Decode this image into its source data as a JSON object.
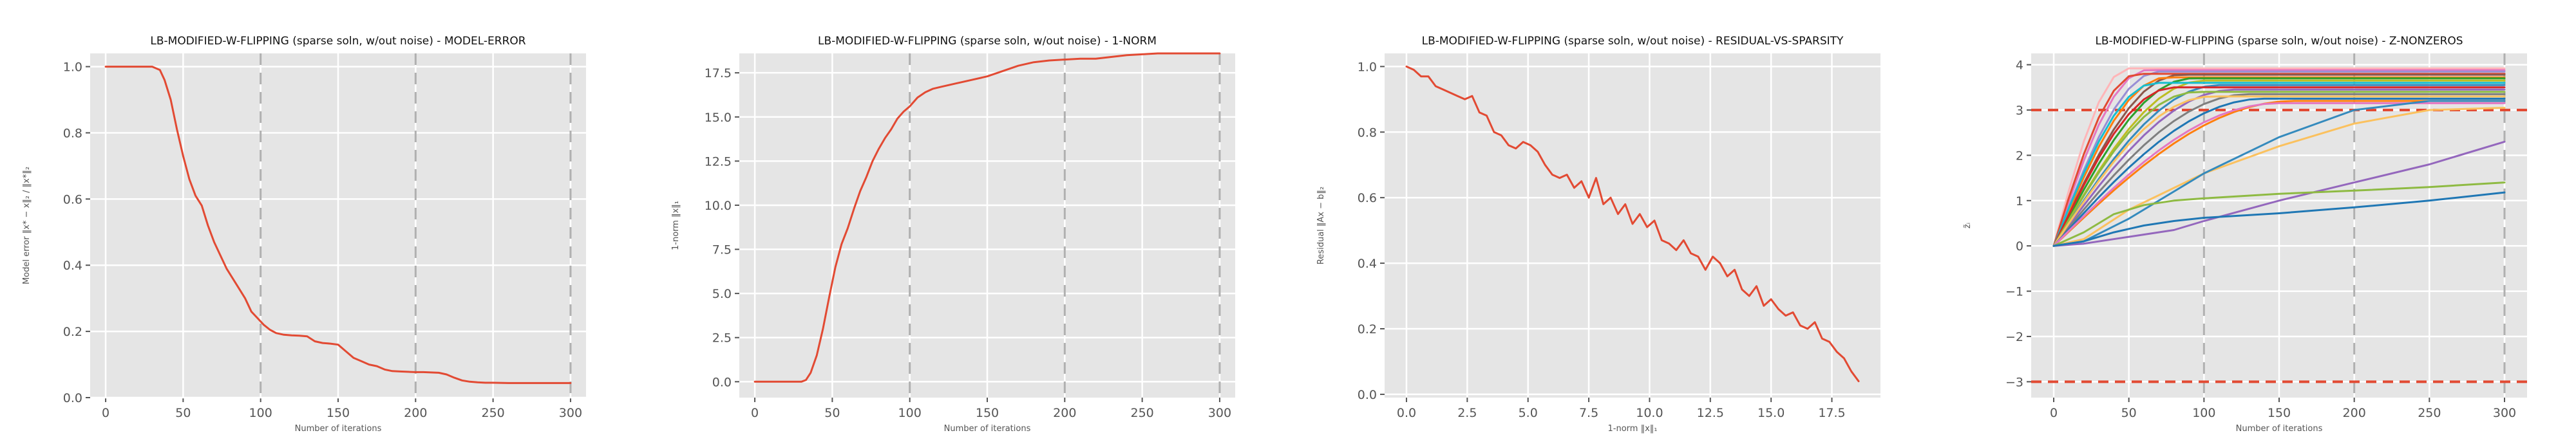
{
  "figure": {
    "colors": {
      "primary": "#e24a33",
      "palette": [
        "#1f77b4",
        "#ff7f0e",
        "#2ca02c",
        "#d62728",
        "#9467bd",
        "#8c564b",
        "#e377c2",
        "#7f7f7f",
        "#bcbd22",
        "#17becf",
        "#e24a33",
        "#348abd",
        "#988ed5",
        "#fbc15e",
        "#8eba42",
        "#ffb5b8"
      ],
      "background": "#e5e5e5",
      "grid": "#ffffff",
      "iteration_marker": "#b0b0b0"
    }
  },
  "chart_data": [
    {
      "type": "line",
      "title": "LB-MODIFIED-W-FLIPPING (sparse soln, w/out noise) - MODEL-ERROR",
      "xlabel": "Number of iterations",
      "ylabel": "Model error ‖x* − x‖₂ / ‖x*‖₂",
      "xlim": [
        -10,
        310
      ],
      "ylim": [
        0,
        1.04
      ],
      "xticks": [
        "0",
        "50",
        "100",
        "150",
        "200",
        "250",
        "300"
      ],
      "yticks": [
        "0.0",
        "0.2",
        "0.4",
        "0.6",
        "0.8",
        "1.0"
      ],
      "grid": true,
      "iteration_markers": [
        100,
        200,
        300
      ],
      "series": [
        {
          "color": "#e24a33",
          "x": [
            0,
            10,
            20,
            30,
            35,
            38,
            42,
            46,
            50,
            54,
            58,
            62,
            66,
            70,
            74,
            78,
            82,
            86,
            90,
            94,
            98,
            102,
            106,
            110,
            115,
            120,
            125,
            130,
            135,
            140,
            145,
            150,
            155,
            160,
            165,
            170,
            175,
            180,
            185,
            190,
            195,
            200,
            205,
            210,
            215,
            220,
            225,
            230,
            235,
            240,
            245,
            250,
            260,
            270,
            280,
            290,
            300
          ],
          "y": [
            1.0,
            1.0,
            1.0,
            1.0,
            0.99,
            0.96,
            0.9,
            0.81,
            0.73,
            0.66,
            0.61,
            0.58,
            0.52,
            0.47,
            0.43,
            0.39,
            0.36,
            0.33,
            0.3,
            0.26,
            0.24,
            0.22,
            0.205,
            0.195,
            0.19,
            0.188,
            0.187,
            0.185,
            0.17,
            0.165,
            0.163,
            0.16,
            0.14,
            0.12,
            0.11,
            0.1,
            0.095,
            0.085,
            0.08,
            0.079,
            0.078,
            0.077,
            0.077,
            0.076,
            0.075,
            0.07,
            0.06,
            0.052,
            0.048,
            0.046,
            0.045,
            0.045,
            0.044,
            0.044,
            0.044,
            0.044,
            0.044
          ]
        }
      ]
    },
    {
      "type": "line",
      "title": "LB-MODIFIED-W-FLIPPING (sparse soln, w/out noise) - 1-NORM",
      "xlabel": "Number of iterations",
      "ylabel": "1-norm ‖x‖₁",
      "xlim": [
        -10,
        310
      ],
      "ylim": [
        -0.9,
        18.6
      ],
      "xticks": [
        "0",
        "50",
        "100",
        "150",
        "200",
        "250",
        "300"
      ],
      "yticks": [
        "0.0",
        "2.5",
        "5.0",
        "7.5",
        "10.0",
        "12.5",
        "15.0",
        "17.5"
      ],
      "grid": true,
      "iteration_markers": [
        100,
        200,
        300
      ],
      "series": [
        {
          "color": "#e24a33",
          "x": [
            0,
            10,
            20,
            30,
            33,
            36,
            40,
            44,
            48,
            52,
            56,
            60,
            64,
            68,
            72,
            76,
            80,
            84,
            88,
            92,
            96,
            100,
            105,
            110,
            115,
            120,
            130,
            140,
            150,
            160,
            170,
            180,
            190,
            200,
            210,
            220,
            230,
            240,
            250,
            260,
            270,
            280,
            290,
            300
          ],
          "y": [
            0,
            0,
            0,
            0,
            0.1,
            0.5,
            1.5,
            3.0,
            4.8,
            6.5,
            7.8,
            8.7,
            9.8,
            10.8,
            11.6,
            12.5,
            13.2,
            13.8,
            14.3,
            14.9,
            15.3,
            15.6,
            16.1,
            16.4,
            16.6,
            16.7,
            16.9,
            17.1,
            17.3,
            17.6,
            17.9,
            18.1,
            18.2,
            18.25,
            18.3,
            18.3,
            18.4,
            18.5,
            18.55,
            18.6,
            18.6,
            18.6,
            18.6,
            18.6
          ]
        }
      ]
    },
    {
      "type": "line",
      "title": "LB-MODIFIED-W-FLIPPING (sparse soln, w/out noise) - RESIDUAL-VS-SPARSITY",
      "xlabel": "1-norm ‖x‖₁",
      "ylabel": "Residual ‖Ax − b‖₂",
      "xlim": [
        -0.9,
        19.5
      ],
      "ylim": [
        -0.01,
        1.04
      ],
      "xticks": [
        "0.0",
        "2.5",
        "5.0",
        "7.5",
        "10.0",
        "12.5",
        "15.0",
        "17.5"
      ],
      "yticks": [
        "0.0",
        "0.2",
        "0.4",
        "0.6",
        "0.8",
        "1.0"
      ],
      "grid": true,
      "iteration_markers": [],
      "series": [
        {
          "color": "#e24a33",
          "x": [
            0,
            0.3,
            0.6,
            0.9,
            1.2,
            1.5,
            1.8,
            2.1,
            2.4,
            2.7,
            3.0,
            3.3,
            3.6,
            3.9,
            4.2,
            4.5,
            4.8,
            5.1,
            5.4,
            5.7,
            6.0,
            6.3,
            6.6,
            6.9,
            7.2,
            7.5,
            7.8,
            8.1,
            8.4,
            8.7,
            9.0,
            9.3,
            9.6,
            9.9,
            10.2,
            10.5,
            10.8,
            11.1,
            11.4,
            11.7,
            12.0,
            12.3,
            12.6,
            12.9,
            13.2,
            13.5,
            13.8,
            14.1,
            14.4,
            14.7,
            15.0,
            15.3,
            15.6,
            15.9,
            16.2,
            16.5,
            16.8,
            17.1,
            17.4,
            17.7,
            18.0,
            18.3,
            18.6
          ],
          "y": [
            1.0,
            0.99,
            0.97,
            0.97,
            0.94,
            0.93,
            0.92,
            0.91,
            0.9,
            0.91,
            0.86,
            0.85,
            0.8,
            0.79,
            0.76,
            0.75,
            0.77,
            0.76,
            0.74,
            0.7,
            0.67,
            0.66,
            0.67,
            0.63,
            0.65,
            0.6,
            0.66,
            0.58,
            0.6,
            0.55,
            0.58,
            0.52,
            0.55,
            0.51,
            0.53,
            0.47,
            0.46,
            0.44,
            0.47,
            0.43,
            0.42,
            0.38,
            0.42,
            0.4,
            0.36,
            0.38,
            0.32,
            0.3,
            0.33,
            0.27,
            0.29,
            0.26,
            0.24,
            0.25,
            0.21,
            0.2,
            0.22,
            0.17,
            0.16,
            0.13,
            0.11,
            0.07,
            0.04
          ]
        }
      ]
    },
    {
      "type": "line",
      "title": "LB-MODIFIED-W-FLIPPING (sparse soln, w/out noise) - Z-NONZEROS",
      "xlabel": "Number of iterations",
      "ylabel": "z̃ᵢ",
      "xlim": [
        -15,
        315
      ],
      "ylim": [
        -3.35,
        4.25
      ],
      "xticks": [
        "0",
        "50",
        "100",
        "150",
        "200",
        "250",
        "300"
      ],
      "yticks": [
        "−3",
        "−2",
        "−1",
        "0",
        "1",
        "2",
        "3",
        "4"
      ],
      "grid": true,
      "iteration_markers": [
        100,
        200,
        300
      ],
      "threshold_lines": [
        3,
        -3
      ],
      "curve_shapes": [
        {
          "final": 3.92,
          "rise": 50,
          "color": "#ffb5b8"
        },
        {
          "final": 3.88,
          "rise": 62,
          "color": "#e377c2"
        },
        {
          "final": 3.85,
          "rise": 70,
          "color": "#988ed5"
        },
        {
          "final": 3.8,
          "rise": 56,
          "color": "#e24a33"
        },
        {
          "final": 3.78,
          "rise": 84,
          "color": "#8c564b"
        },
        {
          "final": 3.72,
          "rise": 75,
          "color": "#ff7f0e"
        },
        {
          "final": 3.7,
          "rise": 92,
          "color": "#2ca02c"
        },
        {
          "final": 3.65,
          "rise": 100,
          "color": "#bcbd22"
        },
        {
          "final": 3.6,
          "rise": 68,
          "color": "#17becf"
        },
        {
          "final": 3.55,
          "rise": 110,
          "color": "#348abd"
        },
        {
          "final": 3.5,
          "rise": 80,
          "color": "#d62728"
        },
        {
          "final": 3.45,
          "rise": 120,
          "color": "#9467bd"
        },
        {
          "final": 3.4,
          "rise": 95,
          "color": "#8eba42"
        },
        {
          "final": 3.35,
          "rise": 130,
          "color": "#7f7f7f"
        },
        {
          "final": 3.3,
          "rise": 105,
          "color": "#fbc15e"
        },
        {
          "final": 3.25,
          "rise": 140,
          "color": "#1f77b4"
        },
        {
          "final": 3.2,
          "rise": 160,
          "color": "#ff7f0e"
        },
        {
          "final": 3.15,
          "rise": 150,
          "color": "#e377c2"
        }
      ],
      "series": [
        {
          "color": "#fbc15e",
          "x": [
            0,
            20,
            50,
            100,
            150,
            200,
            250,
            300
          ],
          "y": [
            0,
            0.15,
            0.8,
            1.6,
            2.2,
            2.7,
            3.0,
            3.05
          ]
        },
        {
          "color": "#348abd",
          "x": [
            0,
            20,
            50,
            100,
            150,
            200,
            250,
            300
          ],
          "y": [
            0,
            0.1,
            0.6,
            1.6,
            2.4,
            3.0,
            3.2,
            3.2
          ]
        },
        {
          "color": "#9467bd",
          "x": [
            0,
            20,
            50,
            80,
            100,
            150,
            200,
            250,
            300
          ],
          "y": [
            0,
            0.05,
            0.2,
            0.35,
            0.55,
            1.0,
            1.4,
            1.8,
            2.3
          ]
        },
        {
          "color": "#8eba42",
          "x": [
            0,
            20,
            40,
            60,
            80,
            100,
            150,
            200,
            250,
            300
          ],
          "y": [
            0,
            0.3,
            0.7,
            0.9,
            1.0,
            1.05,
            1.15,
            1.22,
            1.3,
            1.4
          ]
        },
        {
          "color": "#1f77b4",
          "x": [
            0,
            20,
            40,
            60,
            80,
            100,
            150,
            200,
            250,
            300
          ],
          "y": [
            0,
            0.1,
            0.3,
            0.45,
            0.55,
            0.62,
            0.72,
            0.85,
            1.0,
            1.18
          ]
        }
      ]
    }
  ]
}
